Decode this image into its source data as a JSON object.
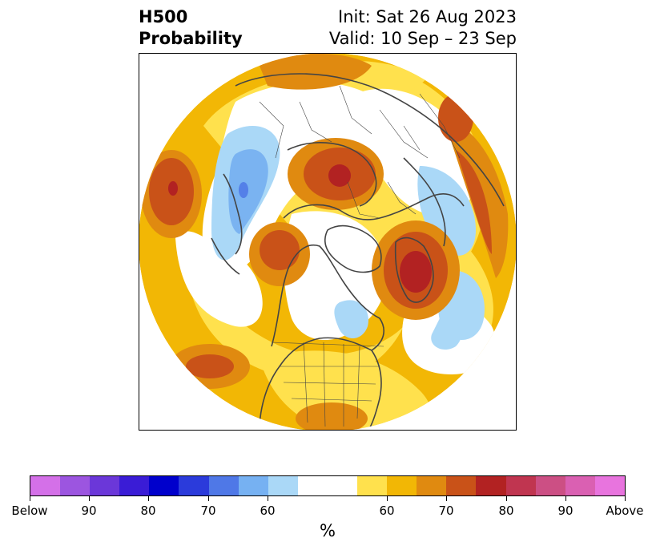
{
  "title": {
    "left_line1": "H500",
    "left_line2": "Probability",
    "right_line1": "Init: Sat 26 Aug 2023",
    "right_line2": "Valid: 10 Sep – 23 Sep"
  },
  "map": {
    "projection": "north-polar-stereographic",
    "colors": {
      "above_55_60": "#ffe14d",
      "above_60_65": "#f2b705",
      "above_65_70": "#e08a10",
      "above_70_75": "#c95218",
      "above_75_80": "#b22222",
      "below_55_60": "#aad8f7",
      "below_60_65": "#7ab3f1",
      "below_65_70": "#5480e8",
      "coastline": "#444444"
    }
  },
  "colorbar": {
    "colors": [
      "#d470e8",
      "#9c55e0",
      "#6b37d9",
      "#3a1cd6",
      "#0000cc",
      "#2b3bdb",
      "#4f78e7",
      "#76b1f2",
      "#aad8f7",
      "#ffffff",
      "#ffffff",
      "#ffe14d",
      "#f2b705",
      "#e08a10",
      "#c95218",
      "#b22222",
      "#c03550",
      "#cc4f84",
      "#da60b2",
      "#e874de"
    ],
    "labels": [
      "Below",
      "90",
      "80",
      "70",
      "60",
      "60",
      "70",
      "80",
      "90",
      "Above"
    ],
    "unit": "%"
  }
}
